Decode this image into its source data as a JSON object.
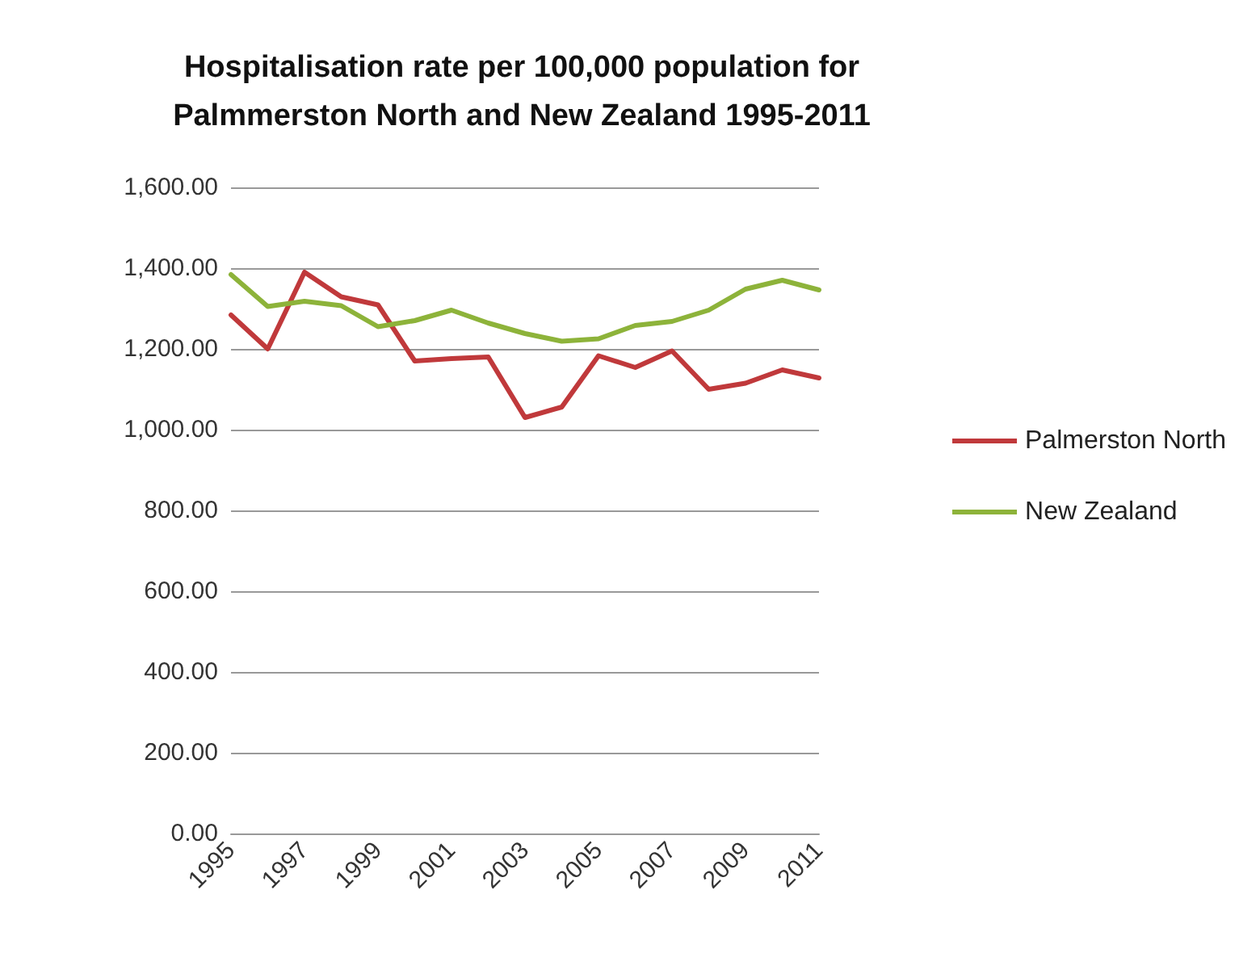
{
  "chart_data": {
    "type": "line",
    "title": "Hospitalisation rate per 100,000 population for\nPalmmerston North and New Zealand 1995-2011",
    "categories": [
      "1995",
      null,
      "1997",
      null,
      "1999",
      null,
      "2001",
      null,
      "2003",
      null,
      "2005",
      null,
      "2007",
      null,
      "2009",
      null,
      "2011"
    ],
    "series": [
      {
        "name": "Palmerston North",
        "color": "#c0393b",
        "values": [
          1284,
          1200,
          1390,
          1329,
          1309,
          1170,
          1176,
          1180,
          1030,
          1056,
          1183,
          1154,
          1195,
          1100,
          1115,
          1148,
          1128
        ]
      },
      {
        "name": "New Zealand",
        "color": "#8db33a",
        "values": [
          1384,
          1305,
          1318,
          1307,
          1255,
          1270,
          1296,
          1264,
          1238,
          1219,
          1225,
          1258,
          1268,
          1296,
          1348,
          1370,
          1346
        ]
      }
    ],
    "ylim": [
      0,
      1600
    ],
    "yticks": [
      {
        "value": 0,
        "label": "0.00"
      },
      {
        "value": 200,
        "label": "200.00"
      },
      {
        "value": 400,
        "label": "400.00"
      },
      {
        "value": 600,
        "label": "600.00"
      },
      {
        "value": 800,
        "label": "800.00"
      },
      {
        "value": 1000,
        "label": "1,000.00"
      },
      {
        "value": 1200,
        "label": "1,200.00"
      },
      {
        "value": 1400,
        "label": "1,400.00"
      },
      {
        "value": 1600,
        "label": "1,600.00"
      }
    ],
    "grid": "y",
    "legend": "right",
    "marker": "none",
    "line_style": "solid"
  }
}
